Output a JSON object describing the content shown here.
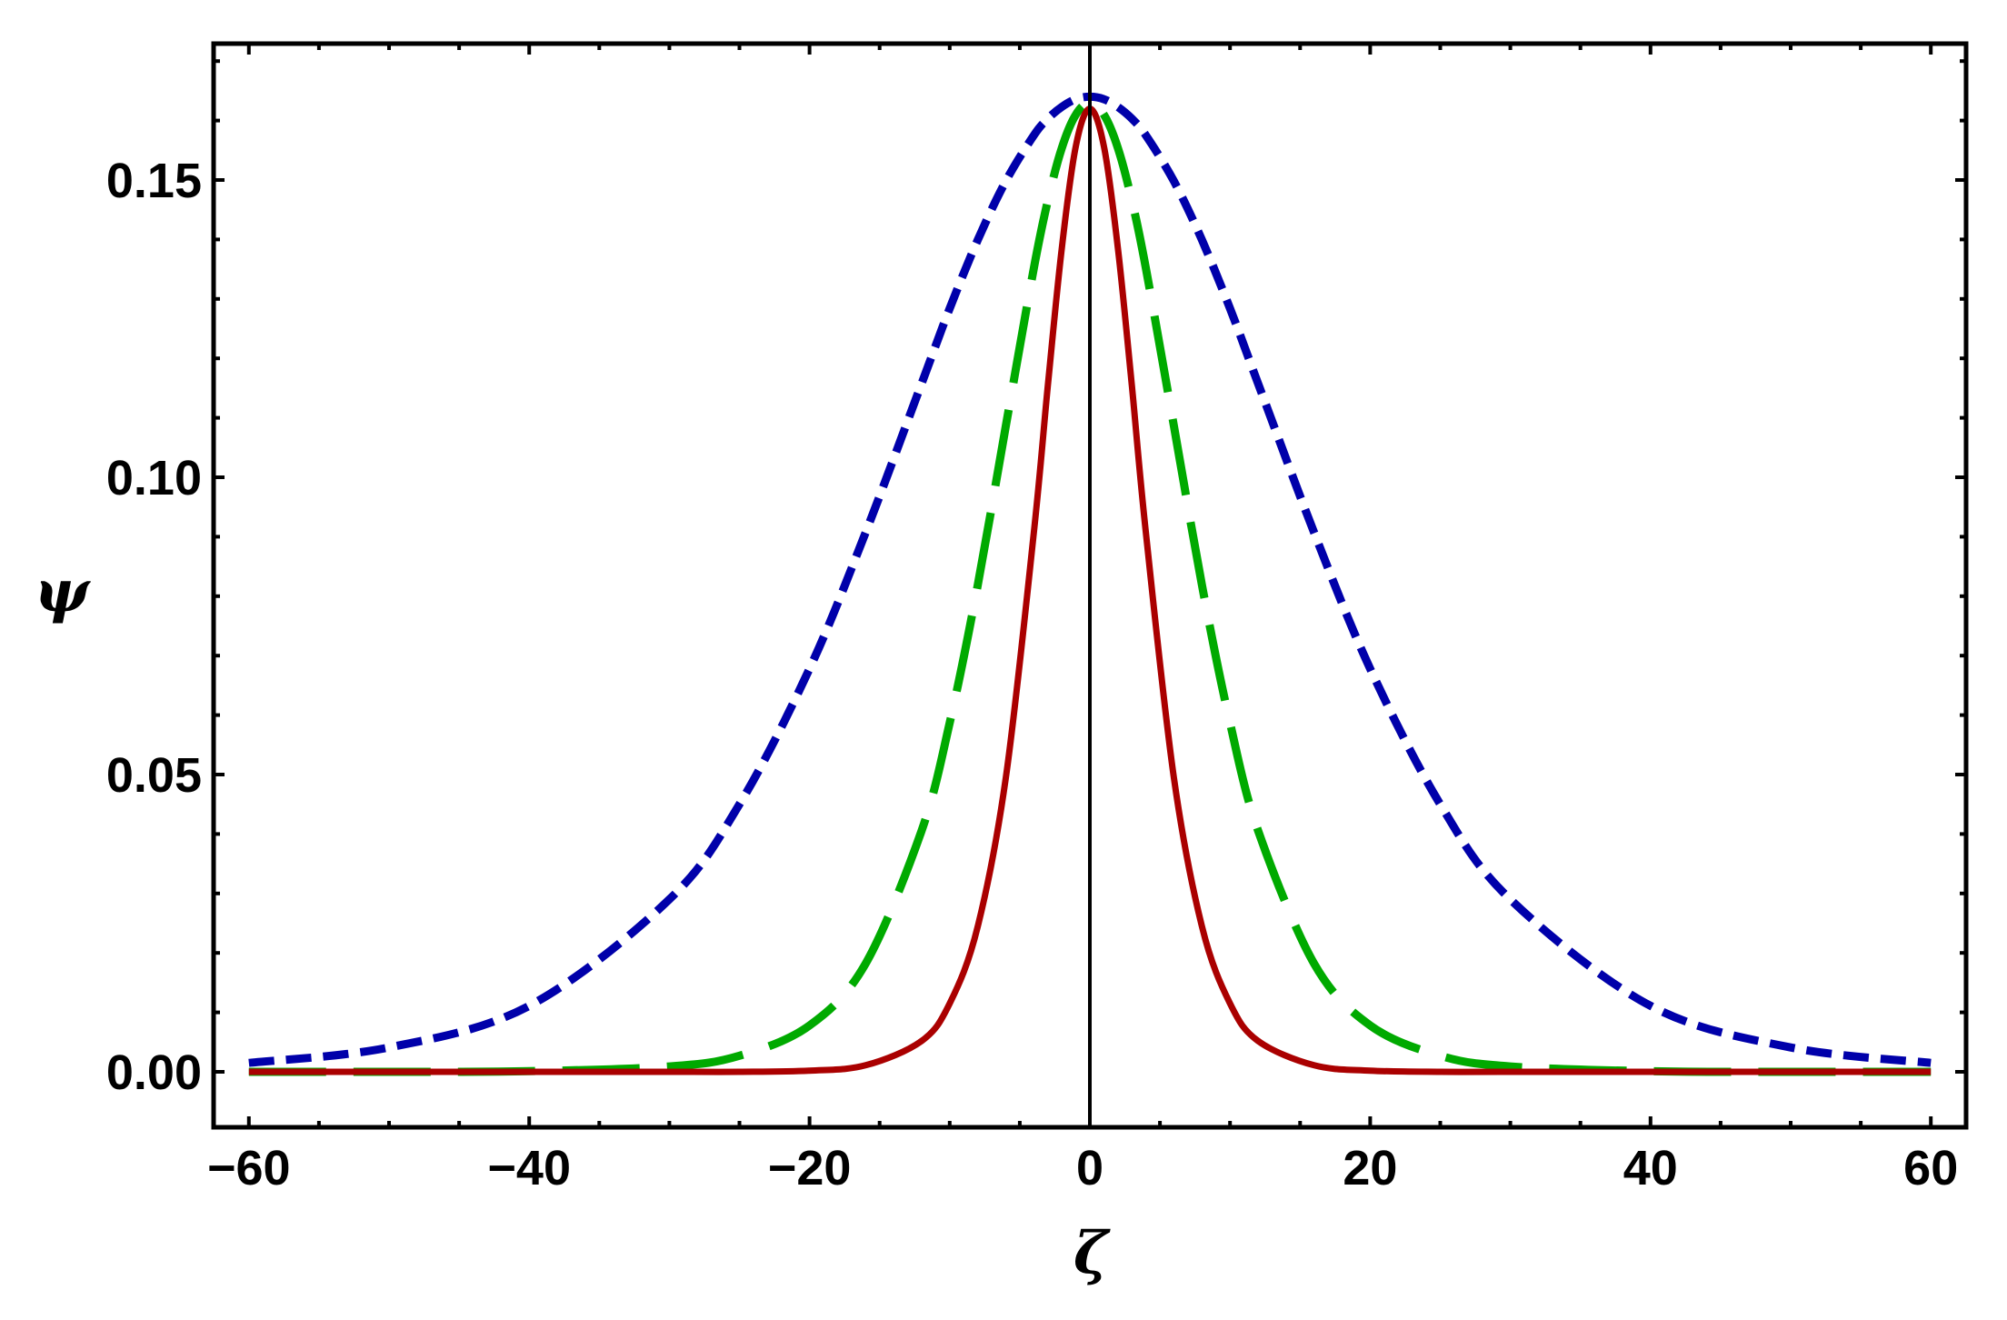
{
  "chart_data": {
    "type": "line",
    "title": "",
    "xlabel": "ζ",
    "ylabel": "ψ",
    "xlim": [
      -62,
      63
    ],
    "ylim": [
      -0.0093,
      0.173
    ],
    "x_ticks": [
      -60,
      -40,
      -20,
      0,
      20,
      40,
      60
    ],
    "x_tick_labels": [
      "−60",
      "−40",
      "−20",
      "0",
      "20",
      "40",
      "60"
    ],
    "x_minor_step": 5,
    "y_ticks": [
      0.0,
      0.05,
      0.1,
      0.15
    ],
    "y_tick_labels": [
      "0.00",
      "0.05",
      "0.10",
      "0.15"
    ],
    "y_minor_step": 0.01,
    "grid": false,
    "legend": null,
    "vertical_reference_line_at_x": 0,
    "x": [
      -60,
      -50,
      -40,
      -30,
      -25,
      -20,
      -16,
      -12,
      -10,
      -8,
      -6,
      -4,
      -3,
      -2,
      -1,
      0,
      1,
      2,
      3,
      4,
      6,
      8,
      10,
      12,
      16,
      20,
      25,
      30,
      40,
      50,
      60
    ],
    "series": [
      {
        "name": "blue-short-dashed",
        "color": "#0000AA",
        "style": "dashed-short",
        "values": [
          0.0015,
          0.0041,
          0.0111,
          0.029,
          0.045,
          0.0678,
          0.0907,
          0.1158,
          0.1284,
          0.1399,
          0.1498,
          0.1575,
          0.1603,
          0.1623,
          0.1636,
          0.164,
          0.1636,
          0.1623,
          0.1603,
          0.1575,
          0.1498,
          0.1399,
          0.1284,
          0.1158,
          0.0907,
          0.0678,
          0.045,
          0.029,
          0.0111,
          0.0041,
          0.0015
        ]
      },
      {
        "name": "green-long-dashed",
        "color": "#00AA00",
        "style": "dashed-long",
        "values": [
          0.0,
          0.0,
          0.0001,
          0.0009,
          0.0027,
          0.0078,
          0.0182,
          0.0406,
          0.0587,
          0.0818,
          0.1086,
          0.1351,
          0.1465,
          0.1554,
          0.161,
          0.163,
          0.161,
          0.1554,
          0.1465,
          0.1351,
          0.1086,
          0.0818,
          0.0587,
          0.0406,
          0.0182,
          0.0078,
          0.0027,
          0.0009,
          0.0001,
          0.0,
          0.0
        ]
      },
      {
        "name": "red-solid",
        "color": "#AA0000",
        "style": "solid",
        "values": [
          0.0,
          0.0,
          0.0,
          0.0,
          0.0,
          0.0002,
          0.0011,
          0.0052,
          0.0115,
          0.0244,
          0.0494,
          0.0906,
          0.1153,
          0.1386,
          0.1557,
          0.162,
          0.1557,
          0.1386,
          0.1153,
          0.0906,
          0.0494,
          0.0244,
          0.0115,
          0.0052,
          0.0011,
          0.0002,
          0.0,
          0.0,
          0.0,
          0.0,
          0.0
        ]
      }
    ]
  }
}
